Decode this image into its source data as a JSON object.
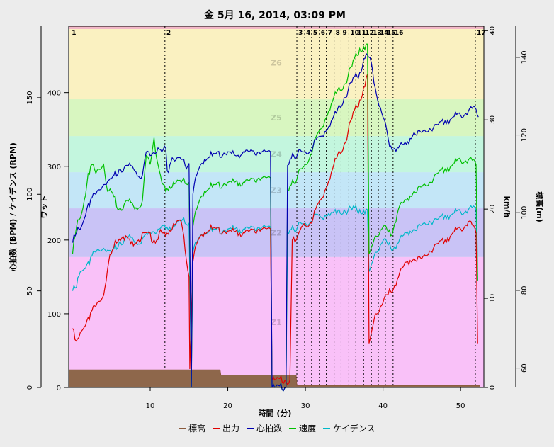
{
  "chart_data": {
    "type": "line",
    "title": "金 5月 16, 2014, 03:09 PM",
    "xlabel": "時間 (分)",
    "xlim": [
      -0.5,
      53
    ],
    "x_ticks": [
      10,
      20,
      30,
      40,
      50
    ],
    "axes": {
      "power": {
        "label": "ワット",
        "lim": [
          0,
          490
        ],
        "ticks": [
          0,
          100,
          200,
          300,
          400
        ]
      },
      "hr_cad": {
        "label": "心拍数 (BPM) / ケイデンス (RPM)",
        "lim": [
          0,
          187
        ],
        "ticks": [
          0,
          50,
          100,
          150
        ]
      },
      "speed": {
        "label": "km/h",
        "lim": [
          0,
          40.5
        ],
        "ticks": [
          0,
          10,
          20,
          30,
          40
        ]
      },
      "elevation": {
        "label": "標高(m)",
        "lim": [
          55,
          148
        ],
        "ticks": [
          60,
          80,
          100,
          120,
          140
        ]
      }
    },
    "zones": [
      {
        "name": "Z1",
        "from": 0,
        "to": 177,
        "color": "#f9c1f8"
      },
      {
        "name": "Z2",
        "from": 177,
        "to": 243,
        "color": "#c9c3f6"
      },
      {
        "name": "Z3",
        "from": 243,
        "to": 292,
        "color": "#c3e6f7"
      },
      {
        "name": "Z4",
        "from": 292,
        "to": 341,
        "color": "#c3f6de"
      },
      {
        "name": "Z5",
        "from": 341,
        "to": 391,
        "color": "#d8f6c0"
      },
      {
        "name": "Z6",
        "from": 391,
        "to": 490,
        "color": "#faf1c1"
      }
    ],
    "laps": [
      {
        "label": "1",
        "x": -0.3
      },
      {
        "label": "2",
        "x": 11.9
      },
      {
        "label": "3",
        "x": 28.9
      },
      {
        "label": "4",
        "x": 29.9
      },
      {
        "label": "5",
        "x": 30.8
      },
      {
        "label": "6",
        "x": 31.8
      },
      {
        "label": "7",
        "x": 32.7
      },
      {
        "label": "8",
        "x": 33.7
      },
      {
        "label": "9",
        "x": 34.6
      },
      {
        "label": "10",
        "x": 35.6
      },
      {
        "label": "11",
        "x": 36.5
      },
      {
        "label": "12",
        "x": 37.5
      },
      {
        "label": "13",
        "x": 38.5
      },
      {
        "label": "14",
        "x": 39.4
      },
      {
        "label": "15",
        "x": 40.3
      },
      {
        "label": "16",
        "x": 41.3
      },
      {
        "label": "17",
        "x": 51.9
      }
    ],
    "series": [
      {
        "name": "標高",
        "color": "#8a5a3c",
        "axis": "elevation",
        "points": [
          [
            -0.5,
            59.5
          ],
          [
            19,
            59.5
          ],
          [
            19.1,
            58.2
          ],
          [
            28.8,
            58.2
          ],
          [
            28.9,
            55.5
          ],
          [
            52.5,
            55.5
          ]
        ]
      },
      {
        "name": "出力",
        "color": "#e00000",
        "axis": "power",
        "points": [
          [
            0,
            80
          ],
          [
            0.3,
            65
          ],
          [
            1,
            75
          ],
          [
            2,
            95
          ],
          [
            3,
            110
          ],
          [
            4,
            125
          ],
          [
            4.8,
            180
          ],
          [
            5.5,
            200
          ],
          [
            6.5,
            205
          ],
          [
            7.5,
            195
          ],
          [
            8.5,
            200
          ],
          [
            9.5,
            210
          ],
          [
            10.5,
            200
          ],
          [
            11.5,
            210
          ],
          [
            12,
            205
          ],
          [
            13,
            222
          ],
          [
            14,
            225
          ],
          [
            15,
            150
          ],
          [
            15.1,
            25
          ],
          [
            15.5,
            170
          ],
          [
            16,
            195
          ],
          [
            17,
            210
          ],
          [
            18,
            215
          ],
          [
            20,
            212
          ],
          [
            22,
            210
          ],
          [
            24,
            215
          ],
          [
            25.5,
            215
          ],
          [
            25.7,
            10
          ],
          [
            28,
            10
          ],
          [
            28.3,
            200
          ],
          [
            29,
            205
          ],
          [
            30,
            220
          ],
          [
            31,
            230
          ],
          [
            32,
            255
          ],
          [
            33,
            280
          ],
          [
            34,
            310
          ],
          [
            35,
            330
          ],
          [
            36,
            365
          ],
          [
            37,
            390
          ],
          [
            38,
            425
          ],
          [
            38.2,
            60
          ],
          [
            39,
            100
          ],
          [
            40,
            115
          ],
          [
            41,
            130
          ],
          [
            42,
            150
          ],
          [
            43,
            170
          ],
          [
            44,
            175
          ],
          [
            45,
            175
          ],
          [
            46,
            185
          ],
          [
            47,
            195
          ],
          [
            48,
            200
          ],
          [
            49,
            210
          ],
          [
            50,
            215
          ],
          [
            51,
            225
          ],
          [
            52,
            210
          ],
          [
            52.2,
            60
          ]
        ]
      },
      {
        "name": "心拍数",
        "color": "#0000b0",
        "axis": "hr_cad",
        "points": [
          [
            0,
            75
          ],
          [
            0.5,
            80
          ],
          [
            1,
            82
          ],
          [
            2,
            95
          ],
          [
            3,
            100
          ],
          [
            4,
            105
          ],
          [
            5,
            108
          ],
          [
            6,
            113
          ],
          [
            7,
            115
          ],
          [
            8,
            112
          ],
          [
            9,
            110
          ],
          [
            9.5,
            122
          ],
          [
            10,
            120
          ],
          [
            11,
            124
          ],
          [
            11.5,
            122
          ],
          [
            12,
            124
          ],
          [
            12.2,
            112
          ],
          [
            13,
            118
          ],
          [
            14,
            118
          ],
          [
            14.5,
            115
          ],
          [
            15,
            116
          ],
          [
            15.3,
            0
          ],
          [
            15.5,
            100
          ],
          [
            16,
            110
          ],
          [
            17,
            118
          ],
          [
            18,
            120
          ],
          [
            20,
            122
          ],
          [
            21,
            120
          ],
          [
            22,
            122
          ],
          [
            24,
            122
          ],
          [
            25.5,
            122
          ],
          [
            25.7,
            0
          ],
          [
            27.5,
            0
          ],
          [
            27.7,
            115
          ],
          [
            28.5,
            120
          ],
          [
            30,
            122
          ],
          [
            31,
            125
          ],
          [
            32,
            130
          ],
          [
            33,
            135
          ],
          [
            34,
            142
          ],
          [
            35,
            150
          ],
          [
            36,
            158
          ],
          [
            37,
            163
          ],
          [
            37.5,
            170
          ],
          [
            38,
            172
          ],
          [
            38.5,
            168
          ],
          [
            39,
            155
          ],
          [
            40,
            140
          ],
          [
            40.7,
            128
          ],
          [
            41,
            125
          ],
          [
            42,
            124
          ],
          [
            43,
            126
          ],
          [
            44,
            132
          ],
          [
            45,
            132
          ],
          [
            46,
            134
          ],
          [
            47,
            136
          ],
          [
            48,
            138
          ],
          [
            49,
            140
          ],
          [
            50,
            141
          ],
          [
            51,
            143
          ],
          [
            52,
            144
          ],
          [
            52.3,
            140
          ]
        ]
      },
      {
        "name": "速度",
        "color": "#00c000",
        "axis": "speed",
        "points": [
          [
            0,
            15
          ],
          [
            0.5,
            18
          ],
          [
            1,
            19
          ],
          [
            1.5,
            21
          ],
          [
            2,
            24
          ],
          [
            2.5,
            25
          ],
          [
            3,
            24
          ],
          [
            4,
            25
          ],
          [
            4.5,
            22
          ],
          [
            5,
            22
          ],
          [
            6,
            20
          ],
          [
            7,
            21
          ],
          [
            8,
            20
          ],
          [
            9,
            21
          ],
          [
            9.5,
            26
          ],
          [
            10,
            25
          ],
          [
            10.5,
            28
          ],
          [
            11,
            25
          ],
          [
            11.5,
            23
          ],
          [
            12,
            22
          ],
          [
            13,
            23
          ],
          [
            14,
            23
          ],
          [
            15,
            23
          ],
          [
            15.3,
            0
          ],
          [
            15.5,
            18
          ],
          [
            16,
            20
          ],
          [
            17,
            22
          ],
          [
            18,
            22.5
          ],
          [
            20,
            23
          ],
          [
            22,
            23
          ],
          [
            24,
            23.5
          ],
          [
            25.5,
            23.5
          ],
          [
            25.7,
            0
          ],
          [
            27.5,
            0
          ],
          [
            27.7,
            22
          ],
          [
            28.5,
            23
          ],
          [
            30,
            25
          ],
          [
            31,
            27
          ],
          [
            32,
            29
          ],
          [
            33,
            31
          ],
          [
            34,
            33
          ],
          [
            35,
            34
          ],
          [
            36,
            36
          ],
          [
            37,
            38
          ],
          [
            38,
            38.5
          ],
          [
            38.2,
            15
          ],
          [
            39,
            17
          ],
          [
            40,
            18
          ],
          [
            41,
            17
          ],
          [
            42,
            20
          ],
          [
            43,
            21
          ],
          [
            44,
            22
          ],
          [
            45,
            22.5
          ],
          [
            46,
            23
          ],
          [
            47,
            24
          ],
          [
            48,
            24.5
          ],
          [
            49,
            25
          ],
          [
            50,
            25.5
          ],
          [
            51,
            25.5
          ],
          [
            52,
            25
          ],
          [
            52.2,
            12
          ]
        ]
      },
      {
        "name": "ケイデンス",
        "color": "#00b8c8",
        "axis": "hr_cad",
        "points": [
          [
            0,
            50
          ],
          [
            0.5,
            52
          ],
          [
            1,
            60
          ],
          [
            2,
            65
          ],
          [
            3,
            70
          ],
          [
            4,
            72
          ],
          [
            5,
            70
          ],
          [
            6,
            75
          ],
          [
            7,
            78
          ],
          [
            8,
            75
          ],
          [
            9,
            77
          ],
          [
            10,
            80
          ],
          [
            11,
            82
          ],
          [
            12,
            82
          ],
          [
            13,
            84
          ],
          [
            14,
            86
          ],
          [
            15,
            85
          ],
          [
            15.3,
            0
          ],
          [
            15.5,
            70
          ],
          [
            16,
            75
          ],
          [
            17,
            80
          ],
          [
            18,
            81
          ],
          [
            20,
            82
          ],
          [
            22,
            82
          ],
          [
            24,
            83
          ],
          [
            25.5,
            83
          ],
          [
            25.7,
            0
          ],
          [
            27.5,
            0
          ],
          [
            27.7,
            80
          ],
          [
            28.5,
            82
          ],
          [
            30,
            85
          ],
          [
            31,
            88
          ],
          [
            32,
            88
          ],
          [
            33,
            90
          ],
          [
            34,
            90
          ],
          [
            35,
            92
          ],
          [
            36,
            92
          ],
          [
            37,
            92
          ],
          [
            38,
            92
          ],
          [
            38.2,
            60
          ],
          [
            39,
            70
          ],
          [
            40,
            76
          ],
          [
            41,
            72
          ],
          [
            42,
            75
          ],
          [
            43,
            80
          ],
          [
            44,
            82
          ],
          [
            45,
            84
          ],
          [
            46,
            86
          ],
          [
            47,
            87
          ],
          [
            48,
            89
          ],
          [
            49,
            90
          ],
          [
            50,
            91
          ],
          [
            51,
            92
          ],
          [
            52,
            92
          ],
          [
            52.2,
            55
          ]
        ]
      }
    ]
  }
}
